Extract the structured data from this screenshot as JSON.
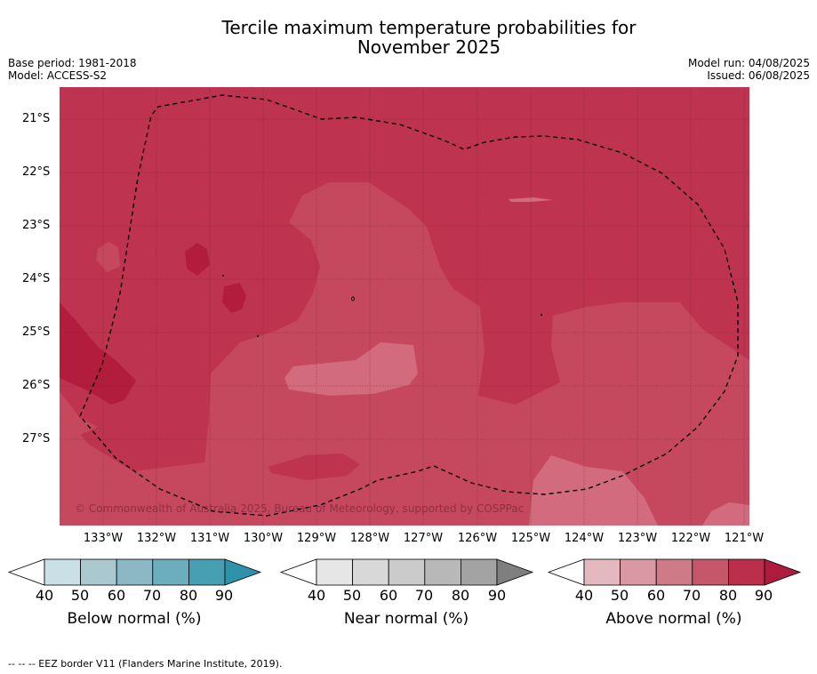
{
  "title_line1": "Tercile maximum temperature probabilities for",
  "title_line2": "November 2025",
  "base_period": "Base period: 1981-2018",
  "model": "Model: ACCESS-S2",
  "model_run": "Model run: 04/08/2025",
  "issued": "Issued: 06/08/2025",
  "map": {
    "lat_labels": [
      "21°S",
      "22°S",
      "23°S",
      "24°S",
      "25°S",
      "26°S",
      "27°S"
    ],
    "lon_labels": [
      "133°W",
      "132°W",
      "131°W",
      "130°W",
      "129°W",
      "128°W",
      "127°W",
      "126°W",
      "125°W",
      "124°W",
      "123°W",
      "122°W",
      "121°W"
    ],
    "copyright": "© Commonwealth of Australia 2025, Bureau of Meteorology, supported by COSPPac",
    "colors": {
      "above_80": "#bd3350",
      "above_70": "#c5485f",
      "above_60": "#d16b7d",
      "above_90": "#b31d3d"
    }
  },
  "colorbars": [
    {
      "name": "below",
      "label": "Below normal (%)",
      "ticks": [
        "40",
        "50",
        "60",
        "70",
        "80",
        "90"
      ],
      "colors": [
        "#ffffff",
        "#c8e0e6",
        "#a9c8d0",
        "#8bb8c4",
        "#6caebd",
        "#47a0b2",
        "#2e93aa"
      ]
    },
    {
      "name": "near",
      "label": "Near normal (%)",
      "ticks": [
        "40",
        "50",
        "60",
        "70",
        "80",
        "90"
      ],
      "colors": [
        "#ffffff",
        "#e6e6e6",
        "#d8d8d8",
        "#cbcbcb",
        "#b8b8b8",
        "#a3a3a3",
        "#7f7f7f"
      ]
    },
    {
      "name": "above",
      "label": "Above normal (%)",
      "ticks": [
        "40",
        "50",
        "60",
        "70",
        "80",
        "90"
      ],
      "colors": [
        "#ffffff",
        "#e4b8bf",
        "#d998a2",
        "#cf7a87",
        "#c6566a",
        "#bb2f4c",
        "#ad1c3c"
      ]
    }
  ],
  "footnote": "--  --  -- EEZ border V11 (Flanders Marine Institute, 2019)."
}
